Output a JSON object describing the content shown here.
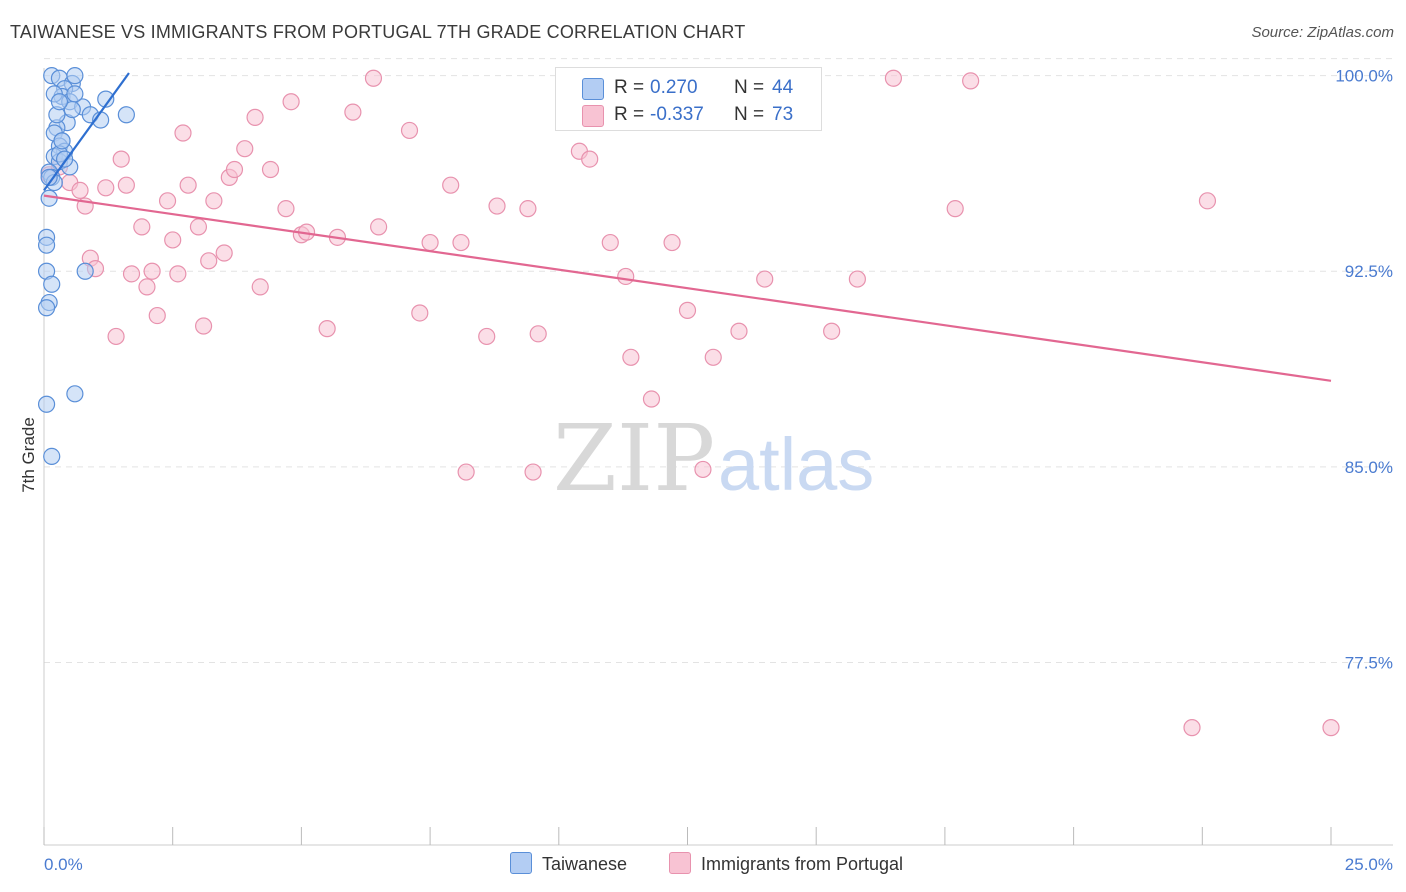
{
  "header": {
    "title": "TAIWANESE VS IMMIGRANTS FROM PORTUGAL 7TH GRADE CORRELATION CHART",
    "source": "Source: ZipAtlas.com"
  },
  "watermark": {
    "zip": "ZIP",
    "atlas": "atlas"
  },
  "colors": {
    "taiwanese_fill": "#b3cdf3",
    "taiwanese_stroke": "#5a8fd8",
    "taiwanese_line": "#2e6fd0",
    "portugal_fill": "#f8c3d3",
    "portugal_stroke": "#e892ae",
    "portugal_line": "#e26791",
    "tick_text": "#4a7bd0",
    "grid": "#e3e3e3"
  },
  "legend": {
    "rows": [
      {
        "r_label": "R =",
        "r_value": "0.270",
        "n_label": "N =",
        "n_value": "44"
      },
      {
        "r_label": "R =",
        "r_value": "-0.337",
        "n_label": "N =",
        "n_value": "73"
      }
    ]
  },
  "bottom_legend": {
    "series1": "Taiwanese",
    "series2": "Immigrants from Portugal"
  },
  "chart_data": {
    "type": "scatter",
    "title": "TAIWANESE VS IMMIGRANTS FROM PORTUGAL 7TH GRADE CORRELATION CHART",
    "xlabel": "",
    "ylabel": "7th Grade",
    "xlim": [
      0,
      25
    ],
    "ylim": [
      70.5,
      100.6
    ],
    "x_tick_labels": [
      {
        "value": 0,
        "label": "0.0%"
      },
      {
        "value": 25,
        "label": "25.0%"
      }
    ],
    "y_tick_labels": [
      {
        "value": 100,
        "label": "100.0%"
      },
      {
        "value": 92.5,
        "label": "92.5%"
      },
      {
        "value": 85,
        "label": "85.0%"
      },
      {
        "value": 77.5,
        "label": "77.5%"
      }
    ],
    "grid": true,
    "legend_position": "top-center",
    "series": [
      {
        "name": "Taiwanese",
        "x": [
          0.15,
          0.3,
          0.55,
          0.4,
          0.35,
          0.5,
          0.75,
          0.9,
          1.1,
          0.45,
          0.25,
          0.2,
          0.35,
          0.3,
          0.4,
          0.2,
          0.3,
          0.5,
          0.1,
          0.15,
          0.2,
          0.3,
          0.4,
          0.25,
          0.6,
          0.55,
          0.2,
          0.1,
          0.05,
          0.05,
          0.05,
          0.15,
          0.1,
          0.05,
          0.05,
          0.8,
          1.6,
          1.2,
          0.3,
          0.35,
          0.6,
          0.1,
          0.6,
          0.15
        ],
        "y": [
          100.0,
          99.9,
          99.7,
          99.5,
          99.2,
          99.0,
          98.8,
          98.5,
          98.3,
          98.2,
          98.0,
          97.8,
          97.5,
          97.3,
          97.1,
          96.9,
          96.7,
          96.5,
          96.3,
          96.1,
          95.9,
          97.0,
          96.8,
          98.5,
          99.3,
          98.7,
          99.3,
          95.3,
          93.8,
          93.5,
          92.5,
          92.0,
          91.3,
          91.1,
          87.4,
          92.5,
          98.5,
          99.1,
          99.0,
          97.5,
          100.0,
          96.1,
          87.8,
          85.4
        ]
      },
      {
        "name": "Immigrants from Portugal",
        "x": [
          0.1,
          0.3,
          0.5,
          0.8,
          0.9,
          1.0,
          1.2,
          1.4,
          1.5,
          1.6,
          1.7,
          1.9,
          2.0,
          2.1,
          2.2,
          2.4,
          2.5,
          2.6,
          2.7,
          2.8,
          3.0,
          3.1,
          3.2,
          3.3,
          3.5,
          3.6,
          3.7,
          3.9,
          4.1,
          4.2,
          4.4,
          4.7,
          4.8,
          5.0,
          5.1,
          5.5,
          5.7,
          6.0,
          6.4,
          6.5,
          7.1,
          7.3,
          7.5,
          7.9,
          8.1,
          8.2,
          8.6,
          8.8,
          9.4,
          9.5,
          9.6,
          10.4,
          10.6,
          11.0,
          11.3,
          11.4,
          11.8,
          12.2,
          12.5,
          12.8,
          13.0,
          13.5,
          13.7,
          14.0,
          15.3,
          15.8,
          16.5,
          17.7,
          18.0,
          22.3,
          22.6,
          25.0,
          0.7
        ],
        "y": [
          96.2,
          96.5,
          95.9,
          95.0,
          93.0,
          92.6,
          95.7,
          90.0,
          96.8,
          95.8,
          92.4,
          94.2,
          91.9,
          92.5,
          90.8,
          95.2,
          93.7,
          92.4,
          97.8,
          95.8,
          94.2,
          90.4,
          92.9,
          95.2,
          93.2,
          96.1,
          96.4,
          97.2,
          98.4,
          91.9,
          96.4,
          94.9,
          99.0,
          93.9,
          94.0,
          90.3,
          93.8,
          98.6,
          99.9,
          94.2,
          97.9,
          90.9,
          93.6,
          95.8,
          93.6,
          84.8,
          90.0,
          95.0,
          94.9,
          84.8,
          90.1,
          97.1,
          96.8,
          93.6,
          92.3,
          89.2,
          87.6,
          93.6,
          91.0,
          84.9,
          89.2,
          90.2,
          99.9,
          92.2,
          90.2,
          92.2,
          99.9,
          94.9,
          99.8,
          75.0,
          95.2,
          75.0,
          95.6
        ]
      }
    ],
    "trend_lines": [
      {
        "series": "Taiwanese",
        "x": [
          0.0,
          1.65
        ],
        "y": [
          95.6,
          100.1
        ]
      },
      {
        "series": "Immigrants from Portugal",
        "x": [
          0.0,
          25.0
        ],
        "y": [
          95.4,
          88.3
        ]
      }
    ]
  }
}
